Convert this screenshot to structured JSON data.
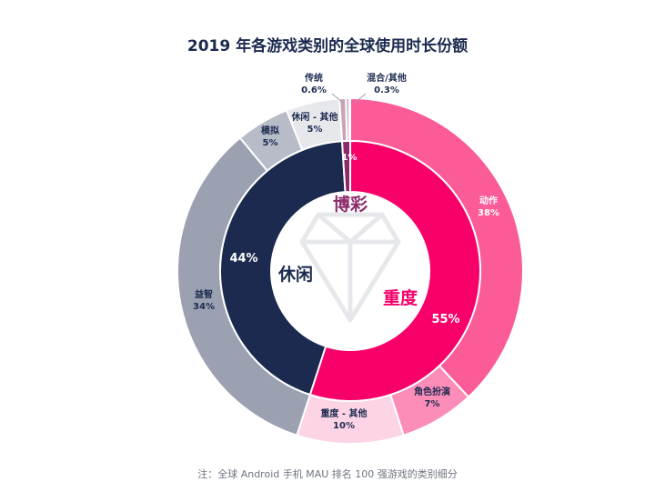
{
  "title": "2019 年各游戏类别的全球使用时长份额",
  "note": "注：全球 Android 手机 MAU 排名 100 强游戏的类别细分",
  "colors": {
    "navy": "#1b2a4e",
    "pink": "#f7006a",
    "magenta": "#8c2a6b",
    "outer_action": "#fb5b97",
    "outer_rpg": "#fb8db8",
    "outer_core_other": "#fcd4e6",
    "outer_puzzle": "#9ba1b1",
    "outer_sim": "#b8bcc8",
    "outer_casual_other": "#e7e8ec",
    "outer_mixed": "#c9a4b8"
  },
  "chart_data": {
    "type": "donut",
    "title": "2019 年各游戏类别的全球使用时长份额",
    "inner": [
      {
        "name": "重度",
        "value": 55,
        "label": "55%"
      },
      {
        "name": "休闲",
        "value": 44,
        "label": "44%"
      },
      {
        "name": "博彩",
        "value": 1,
        "label": "1%"
      }
    ],
    "outer": [
      {
        "name": "动作",
        "value": 38,
        "label": "38%",
        "group": "重度"
      },
      {
        "name": "角色扮演",
        "value": 7,
        "label": "7%",
        "group": "重度"
      },
      {
        "name": "重度 - 其他",
        "value": 10,
        "label": "10%",
        "group": "重度"
      },
      {
        "name": "益智",
        "value": 34,
        "label": "34%",
        "group": "休闲"
      },
      {
        "name": "模拟",
        "value": 5,
        "label": "5%",
        "group": "休闲"
      },
      {
        "name": "休闲 - 其他",
        "value": 5,
        "label": "5%",
        "group": "休闲"
      },
      {
        "name": "传统",
        "value": 0.6,
        "label": "0.6%",
        "group": "博彩"
      },
      {
        "name": "混合/其他",
        "value": 0.3,
        "label": "0.3%",
        "group": "博彩"
      }
    ]
  }
}
